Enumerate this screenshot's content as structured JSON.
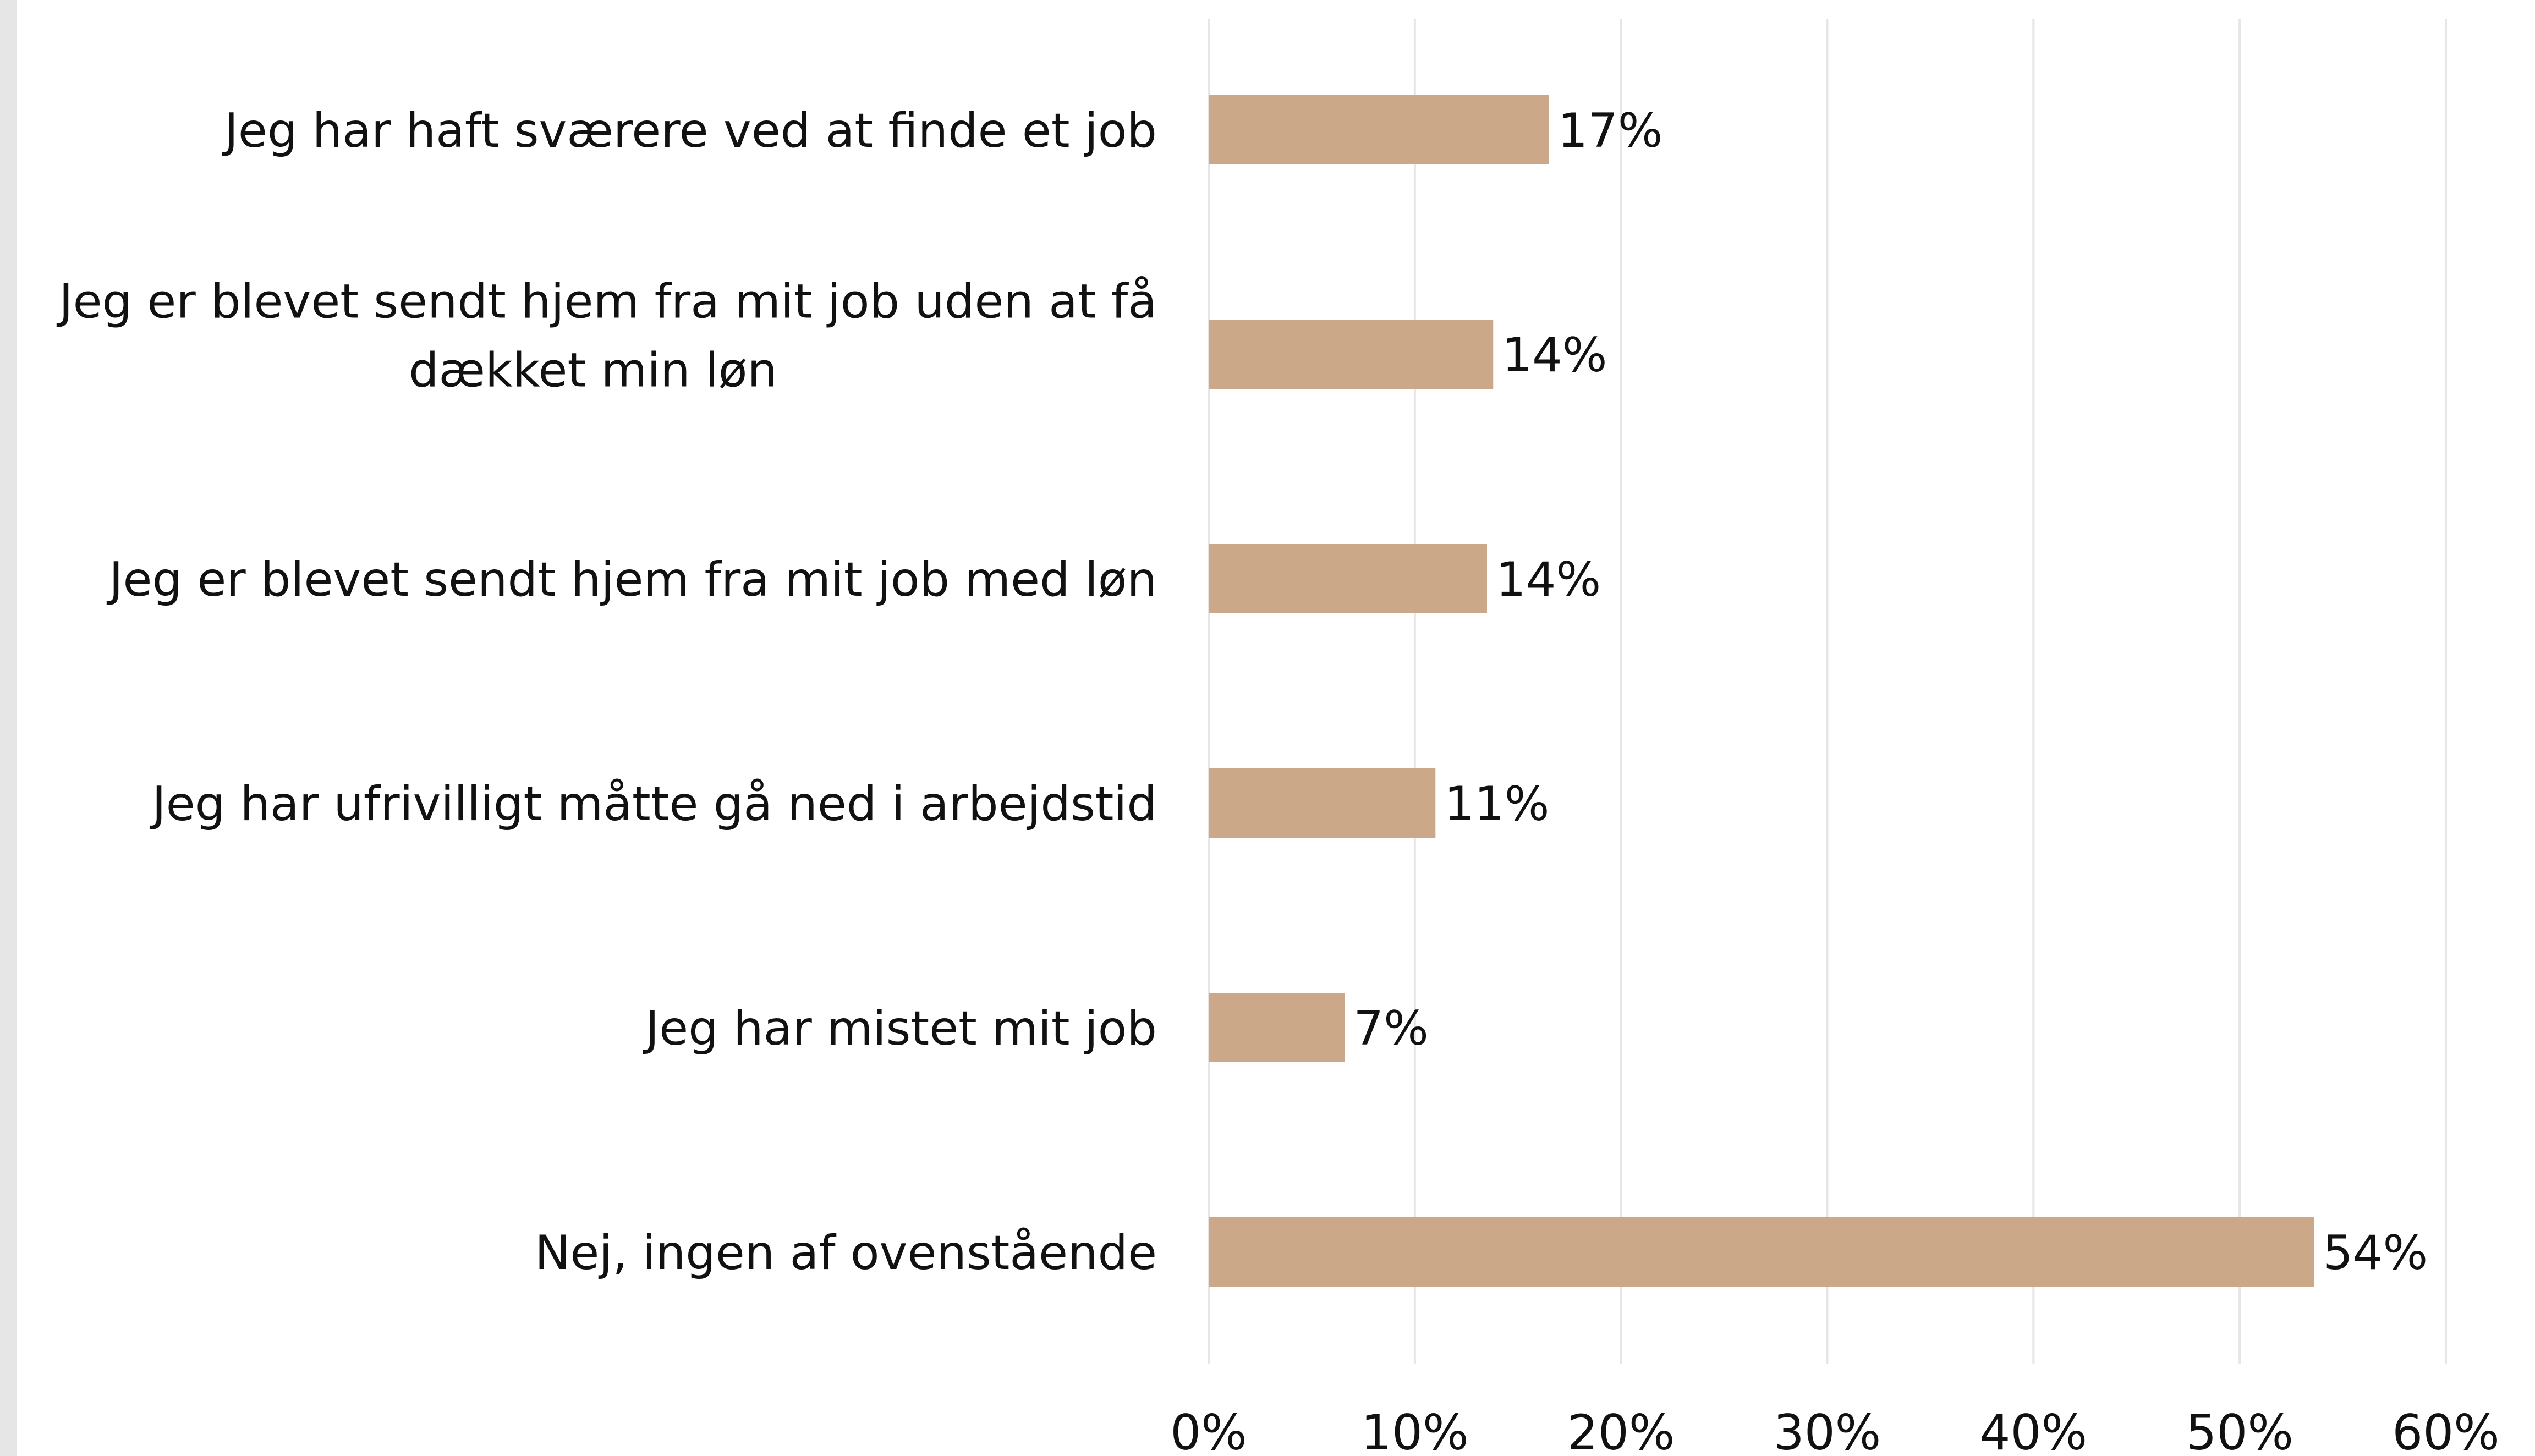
{
  "chart_data": {
    "type": "bar",
    "orientation": "horizontal",
    "categories": [
      [
        "Jeg har haft sværere ved at finde et job"
      ],
      [
        "Jeg er blevet sendt hjem fra mit job uden at få",
        "dække﻿t min løn"
      ],
      [
        "Jeg er blevet sendt hjem fra mit job med løn"
      ],
      [
        "Jeg har ufrivilligt måtte gå ned i arbejdstid"
      ],
      [
        "Jeg har mistet mit job"
      ],
      [
        "Nej, ingen af ovenstående"
      ]
    ],
    "values": [
      16.5,
      13.8,
      13.5,
      11.0,
      6.6,
      53.6
    ],
    "value_labels": [
      "17%",
      "14%",
      "14%",
      "11%",
      "7%",
      "54%"
    ],
    "xlim": [
      0,
      60
    ],
    "xticks": [
      0,
      10,
      20,
      30,
      40,
      50,
      60
    ],
    "xtick_labels": [
      "0%",
      "10%",
      "20%",
      "30%",
      "40%",
      "50%",
      "60%"
    ],
    "grid": true,
    "legend": "none",
    "bar_color": "#cba888",
    "grid_color": "#e6e6e6",
    "text_color": "#111111"
  }
}
